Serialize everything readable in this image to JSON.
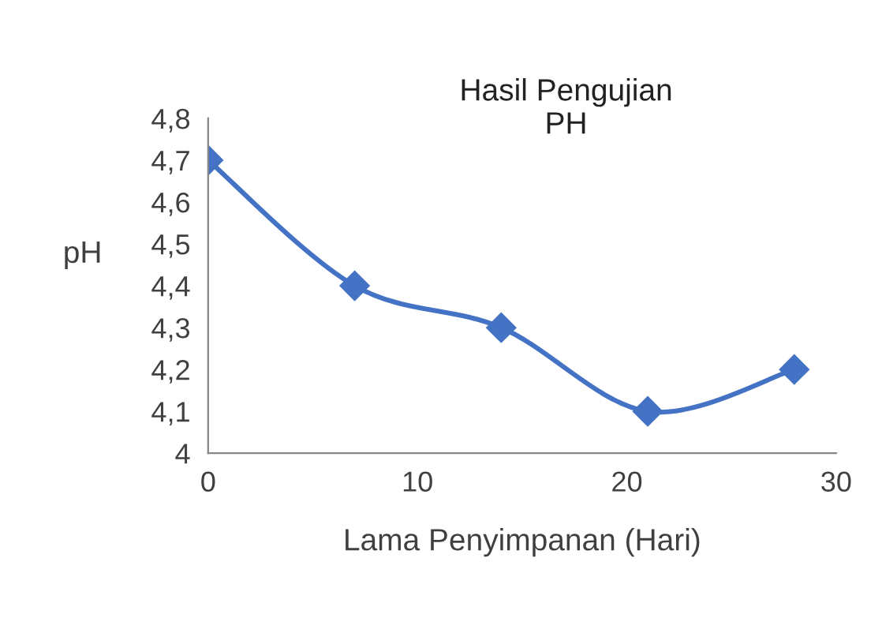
{
  "chart_data": {
    "type": "line",
    "title": "Hasil Pengujian\nPH",
    "xlabel": "Lama Penyimpanan (Hari)",
    "ylabel": "pH",
    "x": [
      0,
      7,
      14,
      21,
      28
    ],
    "series": [
      {
        "color": "#4472c4",
        "values": [
          4.7,
          4.4,
          4.3,
          4.1,
          4.2
        ]
      }
    ],
    "xlim": [
      0,
      30
    ],
    "xticks": [
      0,
      10,
      20,
      30
    ],
    "ylim": [
      4,
      4.8
    ],
    "yticks": [
      4,
      {
        "value": 4.1,
        "label": "4,1"
      },
      {
        "value": 4.2,
        "label": "4,2"
      },
      {
        "value": 4.3,
        "label": "4,3"
      },
      {
        "value": 4.4,
        "label": "4,4"
      },
      {
        "value": 4.5,
        "label": "4,5"
      },
      {
        "value": 4.6,
        "label": "4,6"
      },
      {
        "value": 4.7,
        "label": "4,7"
      },
      {
        "value": 4.8,
        "label": "4,8"
      }
    ],
    "grid": false,
    "legend": false,
    "marker": "diamond",
    "line_style": "solid"
  }
}
